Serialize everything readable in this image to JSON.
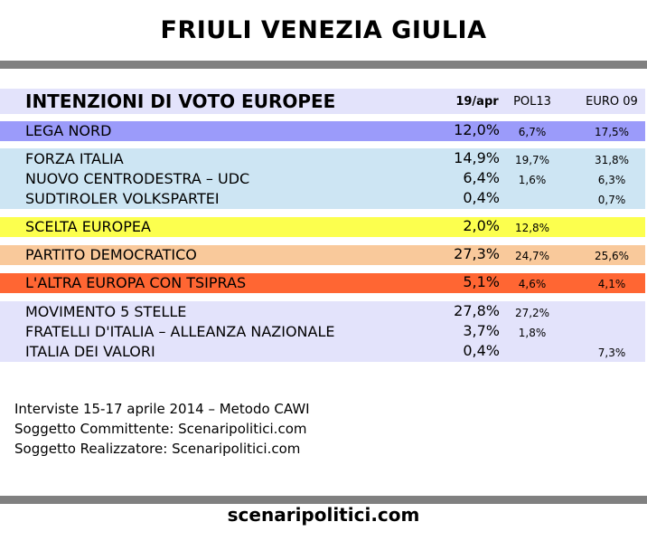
{
  "title": "FRIULI VENEZIA GIULIA",
  "footer": "scenaripolitici.com",
  "chart_data": {
    "type": "table",
    "title": "INTENZIONI DI VOTO EUROPEE",
    "columns": [
      "19/apr",
      "POL13",
      "EURO 09"
    ],
    "groups": [
      {
        "color": "#9b9bfa",
        "rows": [
          {
            "party": "LEGA NORD",
            "main": "12,0%",
            "pol": "6,7%",
            "euro": "17,5%"
          }
        ]
      },
      {
        "color": "#cde5f3",
        "rows": [
          {
            "party": "FORZA ITALIA",
            "main": "14,9%",
            "pol": "19,7%",
            "euro": "31,8%"
          },
          {
            "party": "NUOVO CENTRODESTRA – UDC",
            "main": "6,4%",
            "pol": "1,6%",
            "euro": "6,3%"
          },
          {
            "party": "SUDTIROLER VOLKSPARTEI",
            "main": "0,4%",
            "pol": "",
            "euro": "0,7%"
          }
        ]
      },
      {
        "color": "#fcff4e",
        "rows": [
          {
            "party": "SCELTA EUROPEA",
            "main": "2,0%",
            "pol": "12,8%",
            "euro": ""
          }
        ]
      },
      {
        "color": "#f9c99b",
        "rows": [
          {
            "party": "PARTITO DEMOCRATICO",
            "main": "27,3%",
            "pol": "24,7%",
            "euro": "25,6%"
          }
        ]
      },
      {
        "color": "#ff6633",
        "rows": [
          {
            "party": "L'ALTRA EUROPA CON TSIPRAS",
            "main": "5,1%",
            "pol": "4,6%",
            "euro": "4,1%"
          }
        ]
      },
      {
        "color": "#e3e3fb",
        "rows": [
          {
            "party": "MOVIMENTO 5 STELLE",
            "main": "27,8%",
            "pol": "27,2%",
            "euro": ""
          },
          {
            "party": "FRATELLI D'ITALIA – ALLEANZA NAZIONALE",
            "main": "3,7%",
            "pol": "1,8%",
            "euro": ""
          },
          {
            "party": "ITALIA DEI VALORI",
            "main": "0,4%",
            "pol": "",
            "euro": "7,3%"
          }
        ]
      }
    ]
  },
  "notes": [
    "Interviste 15-17 aprile 2014 – Metodo CAWI",
    "Soggetto Committente: Scenaripolitici.com",
    "Soggetto Realizzatore: Scenaripolitici.com"
  ],
  "colors": {
    "header_bg": "#e3e3fb",
    "rule": "#808080"
  }
}
